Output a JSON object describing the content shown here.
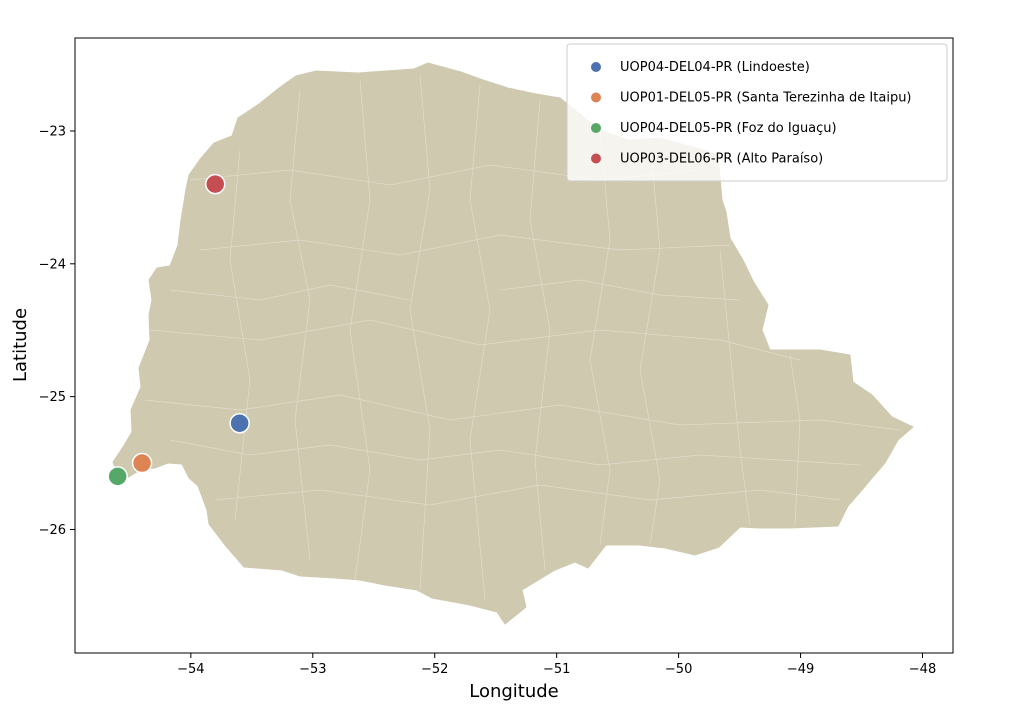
{
  "map": {
    "xlabel": "Longitude",
    "ylabel": "Latitude",
    "xlim": [
      -54.95,
      -47.75
    ],
    "ylim": [
      -26.93,
      -22.3
    ],
    "x_ticks": [
      {
        "value": -54,
        "label": "−54"
      },
      {
        "value": -53,
        "label": "−53"
      },
      {
        "value": -52,
        "label": "−52"
      },
      {
        "value": -51,
        "label": "−51"
      },
      {
        "value": -50,
        "label": "−50"
      },
      {
        "value": -49,
        "label": "−49"
      },
      {
        "value": -48,
        "label": "−48"
      }
    ],
    "y_ticks": [
      {
        "value": -23,
        "label": "−23"
      },
      {
        "value": -24,
        "label": "−24"
      },
      {
        "value": -25,
        "label": "−25"
      },
      {
        "value": -26,
        "label": "−26"
      }
    ],
    "land_color": "#cfc9b0",
    "border_color": "#e2dccb",
    "legend_position": "top-right",
    "points": [
      {
        "name": "UOP04-DEL04-PR (Lindoeste)",
        "lon": -53.6,
        "lat": -25.2,
        "color": "#4c72b0"
      },
      {
        "name": "UOP01-DEL05-PR (Santa Terezinha de Itaipu)",
        "lon": -54.4,
        "lat": -25.5,
        "color": "#dd8452"
      },
      {
        "name": "UOP04-DEL05-PR (Foz do Iguaçu)",
        "lon": -54.6,
        "lat": -25.6,
        "color": "#55a868"
      },
      {
        "name": "UOP03-DEL06-PR (Alto Paraíso)",
        "lon": -53.8,
        "lat": -23.4,
        "color": "#c44e52"
      }
    ]
  }
}
